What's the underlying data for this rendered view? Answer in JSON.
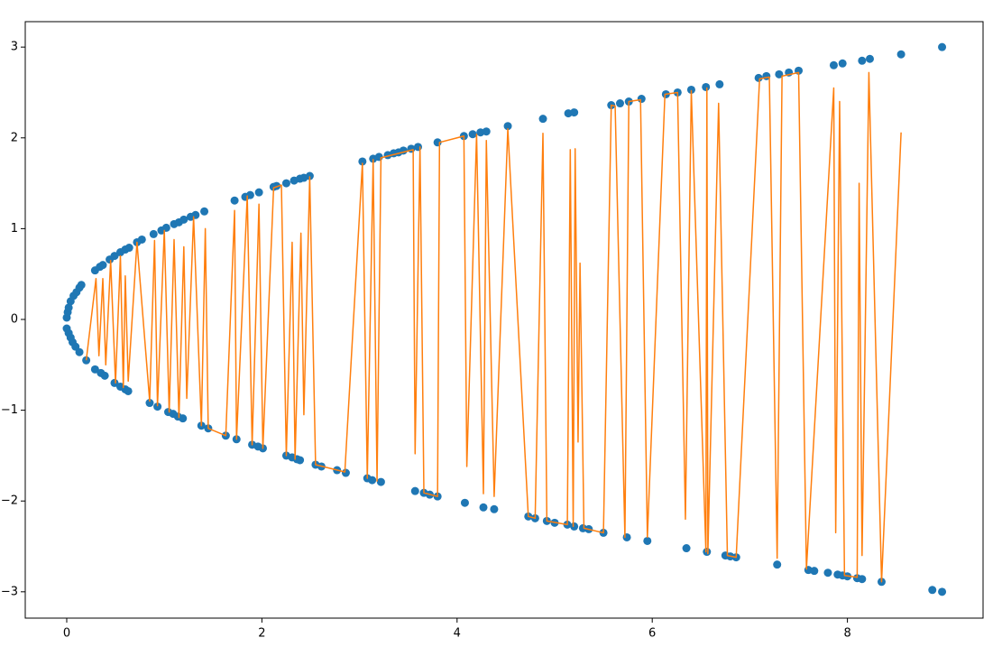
{
  "chart_data": {
    "type": "scatter",
    "xlim": [
      -0.425,
      9.39
    ],
    "ylim": [
      -3.29,
      3.28
    ],
    "xticks": [
      0,
      2,
      4,
      6,
      8
    ],
    "yticks": [
      {
        "value": -3,
        "label": "−3"
      },
      {
        "value": -2,
        "label": "−2"
      },
      {
        "value": -1,
        "label": "−1"
      },
      0,
      1,
      2,
      3
    ],
    "grid": false,
    "series": [
      {
        "type": "scatter",
        "color": "#1f77b4",
        "x": [
          0.0,
          0.01,
          0.02,
          0.04,
          0.07,
          0.1,
          0.13,
          0.15,
          0.29,
          0.34,
          0.37,
          0.44,
          0.49,
          0.55,
          0.6,
          0.64,
          0.72,
          0.77,
          0.89,
          0.97,
          1.02,
          1.1,
          1.15,
          1.2,
          1.27,
          1.32,
          1.41,
          1.72,
          1.83,
          1.88,
          1.97,
          2.12,
          2.15,
          2.25,
          2.33,
          2.39,
          2.43,
          2.49,
          3.03,
          3.14,
          3.2,
          3.29,
          3.35,
          3.4,
          3.45,
          3.53,
          3.6,
          3.8,
          4.07,
          4.16,
          4.24,
          4.3,
          4.52,
          4.88,
          5.14,
          5.2,
          5.58,
          5.67,
          5.76,
          5.89,
          6.14,
          6.26,
          6.4,
          6.55,
          6.69,
          7.09,
          7.17,
          7.3,
          7.4,
          7.5,
          7.86,
          7.95,
          8.15,
          8.23,
          8.55,
          8.97,
          0.0,
          0.02,
          0.04,
          0.06,
          0.09,
          0.13,
          0.2,
          0.29,
          0.35,
          0.39,
          0.49,
          0.55,
          0.6,
          0.63,
          0.85,
          0.93,
          1.04,
          1.09,
          1.14,
          1.19,
          1.38,
          1.45,
          1.63,
          1.74,
          1.9,
          1.96,
          2.01,
          2.25,
          2.31,
          2.36,
          2.39,
          2.55,
          2.61,
          2.77,
          2.86,
          3.08,
          3.13,
          3.22,
          3.57,
          3.66,
          3.72,
          3.8,
          4.08,
          4.27,
          4.38,
          4.73,
          4.8,
          4.92,
          5.0,
          5.13,
          5.2,
          5.29,
          5.35,
          5.5,
          5.74,
          5.95,
          6.35,
          6.56,
          6.75,
          6.8,
          6.86,
          7.28,
          7.6,
          7.66,
          7.8,
          7.9,
          7.95,
          8.0,
          8.1,
          8.15,
          8.35,
          8.87,
          8.97
        ],
        "y": [
          0.02,
          0.08,
          0.13,
          0.2,
          0.26,
          0.3,
          0.35,
          0.38,
          0.54,
          0.58,
          0.6,
          0.66,
          0.7,
          0.74,
          0.77,
          0.79,
          0.85,
          0.88,
          0.94,
          0.98,
          1.01,
          1.05,
          1.07,
          1.1,
          1.13,
          1.15,
          1.19,
          1.31,
          1.35,
          1.37,
          1.4,
          1.46,
          1.47,
          1.5,
          1.53,
          1.55,
          1.56,
          1.58,
          1.74,
          1.77,
          1.79,
          1.81,
          1.83,
          1.84,
          1.86,
          1.88,
          1.9,
          1.95,
          2.02,
          2.04,
          2.06,
          2.07,
          2.13,
          2.21,
          2.27,
          2.28,
          2.36,
          2.38,
          2.4,
          2.43,
          2.48,
          2.5,
          2.53,
          2.56,
          2.59,
          2.66,
          2.68,
          2.7,
          2.72,
          2.74,
          2.8,
          2.82,
          2.85,
          2.87,
          2.92,
          3.0,
          -0.1,
          -0.15,
          -0.2,
          -0.25,
          -0.3,
          -0.36,
          -0.45,
          -0.55,
          -0.59,
          -0.62,
          -0.7,
          -0.74,
          -0.77,
          -0.79,
          -0.92,
          -0.96,
          -1.02,
          -1.04,
          -1.07,
          -1.09,
          -1.17,
          -1.2,
          -1.28,
          -1.32,
          -1.38,
          -1.4,
          -1.42,
          -1.5,
          -1.52,
          -1.54,
          -1.55,
          -1.6,
          -1.62,
          -1.66,
          -1.69,
          -1.75,
          -1.77,
          -1.79,
          -1.89,
          -1.91,
          -1.93,
          -1.95,
          -2.02,
          -2.07,
          -2.09,
          -2.17,
          -2.19,
          -2.22,
          -2.24,
          -2.26,
          -2.28,
          -2.3,
          -2.31,
          -2.35,
          -2.4,
          -2.44,
          -2.52,
          -2.56,
          -2.6,
          -2.61,
          -2.62,
          -2.7,
          -2.76,
          -2.77,
          -2.79,
          -2.81,
          -2.82,
          -2.83,
          -2.85,
          -2.86,
          -2.89,
          -2.98,
          -3.0
        ]
      },
      {
        "type": "line",
        "color": "#ff7f0e",
        "x": [
          0.2,
          0.3,
          0.33,
          0.37,
          0.4,
          0.45,
          0.5,
          0.55,
          0.58,
          0.6,
          0.63,
          0.72,
          0.85,
          0.9,
          0.93,
          1.0,
          1.05,
          1.1,
          1.15,
          1.2,
          1.23,
          1.3,
          1.38,
          1.42,
          1.45,
          1.63,
          1.72,
          1.74,
          1.85,
          1.9,
          1.97,
          2.01,
          2.12,
          2.2,
          2.25,
          2.31,
          2.34,
          2.4,
          2.43,
          2.49,
          2.55,
          2.85,
          3.03,
          3.08,
          3.14,
          3.18,
          3.22,
          3.55,
          3.57,
          3.62,
          3.66,
          3.8,
          3.82,
          4.07,
          4.1,
          4.2,
          4.27,
          4.3,
          4.38,
          4.52,
          4.73,
          4.8,
          4.88,
          4.92,
          5.13,
          5.16,
          5.19,
          5.21,
          5.24,
          5.26,
          5.3,
          5.5,
          5.58,
          5.62,
          5.72,
          5.76,
          5.88,
          5.95,
          6.13,
          6.26,
          6.34,
          6.4,
          6.55,
          6.56,
          6.57,
          6.68,
          6.77,
          6.86,
          7.1,
          7.2,
          7.28,
          7.33,
          7.5,
          7.58,
          7.86,
          7.88,
          7.92,
          7.97,
          8.1,
          8.12,
          8.15,
          8.22,
          8.35,
          8.55
        ],
        "y": [
          -0.45,
          0.45,
          -0.4,
          0.45,
          -0.5,
          0.65,
          -0.7,
          0.7,
          -0.75,
          0.48,
          -0.68,
          0.85,
          -0.9,
          0.87,
          -0.95,
          0.98,
          -1.02,
          0.88,
          -1.08,
          0.8,
          -0.87,
          1.13,
          -1.17,
          1.0,
          -1.2,
          -1.28,
          1.2,
          -1.32,
          1.36,
          -1.38,
          1.27,
          -1.42,
          1.45,
          1.48,
          -1.5,
          0.85,
          -1.54,
          0.95,
          -1.05,
          1.57,
          -1.6,
          -1.68,
          1.72,
          -1.75,
          1.76,
          -1.78,
          1.78,
          1.87,
          -1.48,
          1.9,
          -1.91,
          -1.95,
          1.95,
          2.02,
          -1.62,
          2.04,
          -1.92,
          1.97,
          -1.95,
          2.1,
          -2.17,
          -2.19,
          2.05,
          -2.22,
          -2.26,
          1.87,
          -2.28,
          1.88,
          -1.35,
          0.62,
          -2.3,
          -2.35,
          2.36,
          2.35,
          -2.4,
          2.4,
          2.42,
          -2.4,
          2.48,
          2.5,
          -2.2,
          2.52,
          -2.56,
          2.55,
          -2.58,
          2.38,
          -2.6,
          -2.62,
          2.65,
          2.67,
          -2.63,
          2.68,
          2.72,
          -2.75,
          2.55,
          -2.35,
          2.4,
          -2.82,
          -2.84,
          1.5,
          -2.6,
          2.72,
          -2.89,
          2.06
        ]
      }
    ]
  }
}
